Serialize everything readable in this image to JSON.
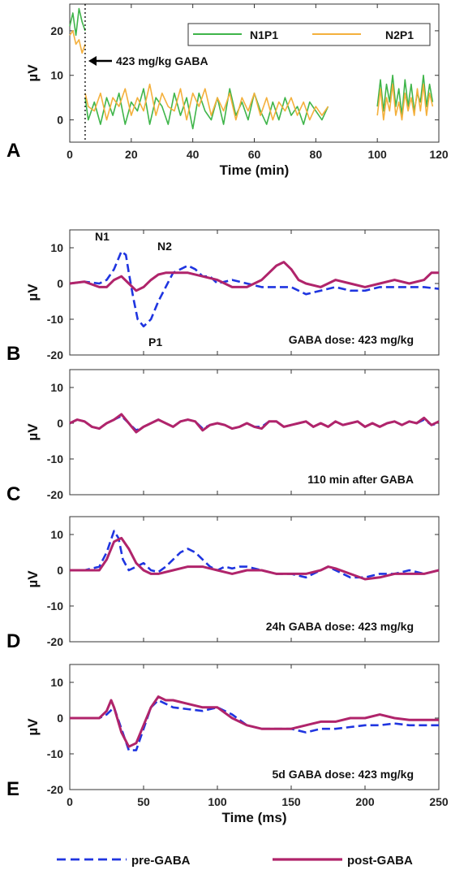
{
  "chart_data": [
    {
      "panel": "A",
      "type": "line",
      "xlabel": "Time (min)",
      "ylabel": "µV",
      "xlim": [
        0,
        120
      ],
      "ylim": [
        -5,
        26
      ],
      "xticks": [
        0,
        20,
        40,
        60,
        80,
        100,
        120
      ],
      "yticks": [
        0,
        10,
        20
      ],
      "legend_position": "top-right",
      "annotation": "423 mg/kg GABA",
      "injection_time_min": 5,
      "colors": {
        "N1P1": "#3fb54a",
        "N2P1": "#f4b03c"
      },
      "series": [
        {
          "name": "N1P1",
          "segments": [
            {
              "x": [
                0,
                1,
                2,
                3,
                4,
                5
              ],
              "y": [
                21,
                24,
                19,
                25,
                22,
                20
              ]
            },
            {
              "x": [
                5,
                6,
                8,
                10,
                12,
                14,
                16,
                18,
                20,
                22,
                24,
                26,
                28,
                30,
                32,
                34,
                36,
                38,
                40,
                42,
                44,
                46,
                48,
                50,
                52,
                54,
                56,
                58,
                60,
                62,
                64,
                66,
                68,
                70,
                72,
                74,
                76,
                78,
                80,
                82,
                84
              ],
              "y": [
                5,
                0,
                4,
                -1,
                5,
                1,
                6,
                -1,
                4,
                2,
                7,
                -1,
                5,
                3,
                -1,
                6,
                1,
                5,
                -2,
                6,
                2,
                0,
                5,
                -1,
                7,
                1,
                4,
                0,
                6,
                2,
                -1,
                4,
                0,
                5,
                1,
                3,
                -1,
                4,
                2,
                0,
                3
              ]
            },
            {
              "x": [
                100,
                101,
                102,
                103,
                104,
                105,
                106,
                107,
                108,
                109,
                110,
                111,
                112,
                113,
                114,
                115,
                116,
                117,
                118
              ],
              "y": [
                3,
                9,
                2,
                8,
                4,
                10,
                3,
                7,
                1,
                9,
                3,
                8,
                2,
                6,
                4,
                10,
                3,
                8,
                4
              ]
            }
          ]
        },
        {
          "name": "N2P1",
          "segments": [
            {
              "x": [
                0,
                1,
                2,
                3,
                4,
                5
              ],
              "y": [
                19,
                20,
                17,
                18,
                15,
                17
              ]
            },
            {
              "x": [
                5,
                6,
                8,
                10,
                12,
                14,
                16,
                18,
                20,
                22,
                24,
                26,
                28,
                30,
                32,
                34,
                36,
                38,
                40,
                42,
                44,
                46,
                48,
                50,
                52,
                54,
                56,
                58,
                60,
                62,
                64,
                66,
                68,
                70,
                72,
                74,
                76,
                78,
                80,
                82,
                84
              ],
              "y": [
                6,
                3,
                2,
                6,
                0,
                5,
                3,
                7,
                1,
                5,
                2,
                8,
                1,
                6,
                3,
                2,
                7,
                0,
                6,
                3,
                7,
                1,
                5,
                2,
                6,
                0,
                5,
                2,
                6,
                1,
                5,
                0,
                4,
                2,
                5,
                1,
                4,
                0,
                3,
                1,
                3
              ]
            },
            {
              "x": [
                100,
                101,
                102,
                103,
                104,
                105,
                106,
                107,
                108,
                109,
                110,
                111,
                112,
                113,
                114,
                115,
                116,
                117,
                118
              ],
              "y": [
                1,
                7,
                0,
                5,
                2,
                8,
                1,
                4,
                0,
                6,
                2,
                5,
                1,
                7,
                2,
                8,
                1,
                6,
                3
              ]
            }
          ]
        }
      ]
    },
    {
      "panel": "B",
      "type": "line",
      "annotation": "GABA dose: 423 mg/kg",
      "peak_labels": [
        "N1",
        "N2",
        "P1"
      ],
      "ylabel": "µV",
      "xlim": [
        0,
        250
      ],
      "ylim": [
        -20,
        15
      ],
      "yticks": [
        10,
        0,
        -10,
        -20
      ],
      "series": [
        {
          "name": "pre-GABA",
          "x": [
            0,
            10,
            20,
            25,
            30,
            35,
            38,
            40,
            43,
            46,
            50,
            55,
            60,
            65,
            70,
            75,
            80,
            85,
            90,
            95,
            100,
            110,
            120,
            130,
            140,
            150,
            160,
            170,
            180,
            190,
            200,
            210,
            220,
            230,
            240,
            250
          ],
          "y": [
            0,
            0.5,
            0,
            1,
            4,
            9,
            8,
            3,
            -4,
            -10,
            -12,
            -10,
            -5,
            -1,
            3,
            4,
            5,
            4,
            2,
            2,
            0,
            1,
            0,
            -1,
            -1,
            -1,
            -3,
            -2,
            -1,
            -2,
            -2,
            -1,
            -1,
            -1,
            -1,
            -1.5
          ]
        },
        {
          "name": "post-GABA",
          "x": [
            0,
            10,
            20,
            25,
            30,
            35,
            40,
            45,
            50,
            55,
            60,
            65,
            70,
            80,
            90,
            100,
            110,
            120,
            130,
            135,
            140,
            145,
            150,
            155,
            160,
            170,
            180,
            190,
            200,
            210,
            220,
            230,
            240,
            245,
            250
          ],
          "y": [
            0,
            0.5,
            -1,
            -1,
            1,
            2,
            0,
            -2,
            -1,
            1,
            2.5,
            3,
            3,
            3,
            2,
            1,
            -1,
            -1,
            1,
            3,
            5,
            6,
            4,
            1,
            0,
            -1,
            1,
            0,
            -1,
            0,
            1,
            0,
            1,
            3,
            3
          ]
        }
      ]
    },
    {
      "panel": "C",
      "type": "line",
      "annotation": "110 min after GABA",
      "ylabel": "µV",
      "xlim": [
        0,
        250
      ],
      "ylim": [
        -20,
        15
      ],
      "yticks": [
        10,
        0,
        -10,
        -20
      ],
      "series": [
        {
          "name": "pre-GABA",
          "x": [
            0,
            5,
            10,
            15,
            20,
            25,
            30,
            35,
            40,
            45,
            50,
            55,
            60,
            65,
            70,
            75,
            80,
            85,
            90,
            95,
            100,
            105,
            110,
            115,
            120,
            125,
            130,
            135,
            140,
            145,
            150,
            155,
            160,
            165,
            170,
            175,
            180,
            185,
            190,
            195,
            200,
            205,
            210,
            215,
            220,
            225,
            230,
            235,
            240,
            245,
            250
          ],
          "y": [
            0,
            1,
            0.5,
            -1,
            -1.5,
            0,
            1,
            2,
            0,
            -2,
            -1,
            0,
            1,
            0,
            -1,
            0.5,
            1,
            0.5,
            -1.5,
            -0.5,
            0,
            -0.5,
            -1.5,
            -1,
            0,
            -1,
            -1,
            0.5,
            0.5,
            -1,
            -0.5,
            0,
            0.5,
            -1,
            0,
            -1,
            0.5,
            -0.5,
            0,
            0.5,
            -1,
            0,
            -1,
            0,
            0.5,
            -0.5,
            0.5,
            0,
            1,
            -0.5,
            0
          ]
        },
        {
          "name": "post-GABA",
          "x": [
            0,
            5,
            10,
            15,
            20,
            25,
            30,
            35,
            40,
            45,
            50,
            55,
            60,
            65,
            70,
            75,
            80,
            85,
            90,
            95,
            100,
            105,
            110,
            115,
            120,
            125,
            130,
            135,
            140,
            145,
            150,
            155,
            160,
            165,
            170,
            175,
            180,
            185,
            190,
            195,
            200,
            205,
            210,
            215,
            220,
            225,
            230,
            235,
            240,
            245,
            250
          ],
          "y": [
            0,
            1,
            0.5,
            -1,
            -1.5,
            0,
            1,
            2.5,
            0,
            -2.5,
            -1,
            0,
            1,
            0,
            -1,
            0.5,
            1,
            0.5,
            -2,
            -0.5,
            0,
            -0.5,
            -1.5,
            -1,
            0,
            -1,
            -1.5,
            0.5,
            0.5,
            -1,
            -0.5,
            0,
            0.5,
            -1,
            0,
            -1,
            0.5,
            -0.5,
            0,
            0.5,
            -1,
            0,
            -1,
            0,
            0.5,
            -0.5,
            0.5,
            0,
            1.5,
            -0.5,
            0.5
          ]
        }
      ]
    },
    {
      "panel": "D",
      "type": "line",
      "annotation": "24h GABA dose: 423 mg/kg",
      "ylabel": "µV",
      "xlim": [
        0,
        250
      ],
      "ylim": [
        -20,
        15
      ],
      "yticks": [
        10,
        0,
        -10,
        -20
      ],
      "series": [
        {
          "name": "pre-GABA",
          "x": [
            0,
            10,
            20,
            25,
            30,
            33,
            36,
            40,
            45,
            50,
            55,
            60,
            65,
            70,
            75,
            80,
            85,
            90,
            95,
            100,
            105,
            110,
            115,
            120,
            130,
            140,
            150,
            160,
            170,
            175,
            180,
            190,
            200,
            210,
            220,
            230,
            240,
            250
          ],
          "y": [
            0,
            0,
            1,
            5,
            11,
            9,
            3,
            0,
            1,
            2,
            0,
            -0.5,
            1,
            3,
            5,
            6,
            5,
            3,
            1,
            0,
            1,
            0.5,
            1,
            1,
            0,
            -1,
            -1,
            -2,
            0,
            1,
            0,
            -2,
            -2,
            -1,
            -1,
            0,
            -1,
            0
          ]
        },
        {
          "name": "post-GABA",
          "x": [
            0,
            10,
            20,
            25,
            30,
            35,
            40,
            45,
            50,
            55,
            60,
            70,
            80,
            90,
            100,
            110,
            120,
            130,
            140,
            150,
            160,
            170,
            175,
            180,
            190,
            200,
            210,
            220,
            230,
            240,
            250
          ],
          "y": [
            0,
            0,
            0,
            3,
            8,
            9,
            6,
            2,
            0,
            -1,
            -1,
            0,
            1,
            1,
            0,
            -1,
            0,
            0,
            -1,
            -1,
            -1,
            0,
            1,
            0.5,
            -1,
            -2.5,
            -2,
            -1,
            -1,
            -1,
            0
          ]
        }
      ]
    },
    {
      "panel": "E",
      "type": "line",
      "annotation": "5d GABA dose: 423 mg/kg",
      "xlabel": "Time (ms)",
      "ylabel": "µV",
      "xlim": [
        0,
        250
      ],
      "ylim": [
        -20,
        15
      ],
      "xticks": [
        0,
        50,
        100,
        150,
        200,
        250
      ],
      "yticks": [
        10,
        0,
        -10,
        -20
      ],
      "series": [
        {
          "name": "pre-GABA",
          "x": [
            0,
            10,
            20,
            25,
            30,
            35,
            40,
            45,
            50,
            55,
            60,
            65,
            70,
            80,
            90,
            100,
            110,
            120,
            130,
            140,
            150,
            160,
            170,
            180,
            190,
            200,
            210,
            220,
            230,
            240,
            250
          ],
          "y": [
            0,
            0,
            0,
            1,
            3,
            -3,
            -9,
            -9,
            -3,
            3,
            5,
            4,
            3,
            2.5,
            2,
            3,
            1,
            -2,
            -3,
            -3,
            -3,
            -4,
            -3,
            -3,
            -2.5,
            -2,
            -2,
            -1.5,
            -2,
            -2,
            -2
          ]
        },
        {
          "name": "post-GABA",
          "x": [
            0,
            10,
            20,
            25,
            28,
            30,
            35,
            40,
            45,
            50,
            55,
            60,
            65,
            70,
            80,
            90,
            100,
            110,
            120,
            130,
            140,
            150,
            160,
            170,
            180,
            190,
            200,
            210,
            220,
            230,
            240,
            250
          ],
          "y": [
            0,
            0,
            0,
            2,
            5,
            3,
            -4,
            -8,
            -7,
            -2,
            3,
            6,
            5,
            5,
            4,
            3,
            3,
            0,
            -2,
            -3,
            -3,
            -3,
            -2,
            -1,
            -1,
            0,
            0,
            1,
            0,
            -0.5,
            -0.5,
            -0.5
          ]
        }
      ]
    }
  ],
  "legend": [
    {
      "name": "pre-GABA",
      "color": "#1f35e0",
      "style": "dashed"
    },
    {
      "name": "post-GABA",
      "color": "#b0246b",
      "style": "solid"
    }
  ]
}
